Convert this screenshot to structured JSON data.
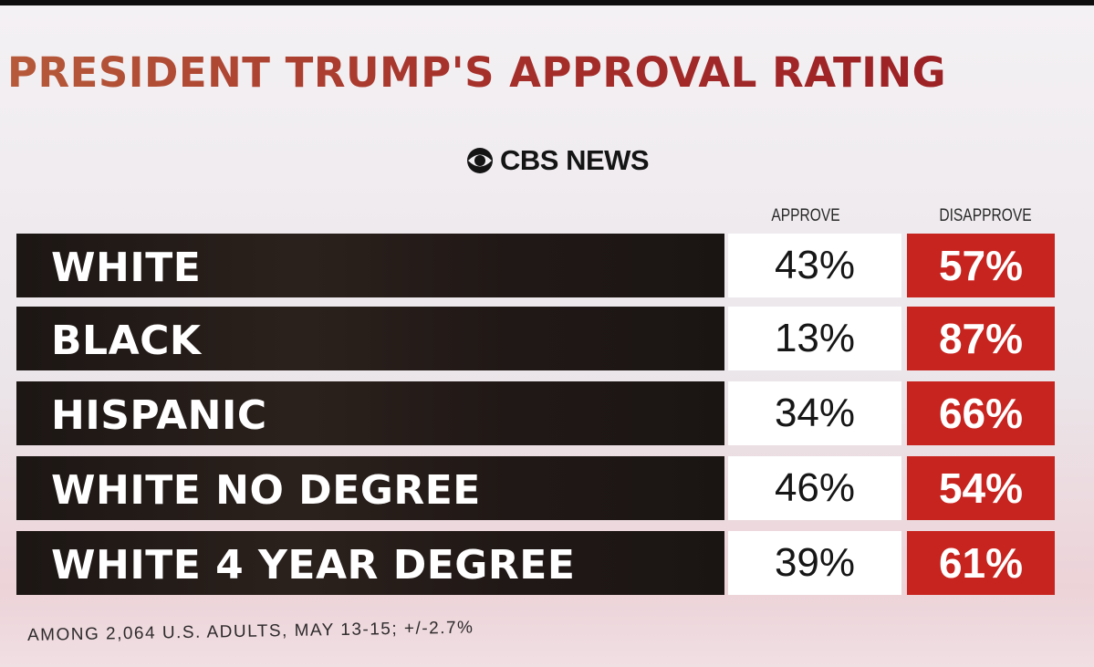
{
  "chart_data": {
    "type": "table",
    "title": "PRESIDENT TRUMP'S APPROVAL RATING",
    "source": "CBS NEWS",
    "columns": [
      "APPROVE",
      "DISAPPROVE"
    ],
    "rows": [
      {
        "label": "WHITE",
        "approve": "43%",
        "disapprove": "57%"
      },
      {
        "label": "BLACK",
        "approve": "13%",
        "disapprove": "87%"
      },
      {
        "label": "HISPANIC",
        "approve": "34%",
        "disapprove": "66%"
      },
      {
        "label": "WHITE NO DEGREE",
        "approve": "46%",
        "disapprove": "54%"
      },
      {
        "label": "WHITE 4 YEAR DEGREE",
        "approve": "39%",
        "disapprove": "61%"
      }
    ],
    "footnote": "AMONG 2,064 U.S. ADULTS, MAY 13-15; +/-2.7%"
  },
  "colors": {
    "title": "#a52f2a",
    "label_box": "#1c1614",
    "disapprove_box": "#c8241f",
    "approve_box": "#ffffff"
  },
  "icons": {
    "brand": "cbs-eye-icon"
  }
}
